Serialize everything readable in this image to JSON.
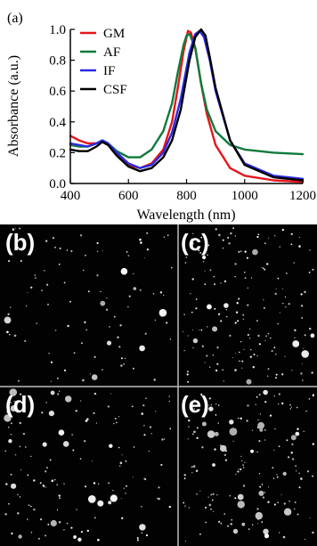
{
  "chart_data": {
    "type": "line",
    "panel_label": "(a)",
    "xlabel": "Wavelength (nm)",
    "ylabel": "Absorbance (a.u.)",
    "xlim": [
      400,
      1200
    ],
    "ylim": [
      0.0,
      1.0
    ],
    "xticks": [
      "400",
      "600",
      "800",
      "1000",
      "1200"
    ],
    "yticks": [
      "0.0",
      "0.2",
      "0.4",
      "0.6",
      "0.8",
      "1.0"
    ],
    "grid": false,
    "legend_position": "top-left",
    "series": [
      {
        "name": "GM",
        "color": "#e8141c",
        "x": [
          400,
          430,
          460,
          490,
          510,
          530,
          560,
          600,
          640,
          680,
          720,
          750,
          770,
          790,
          805,
          815,
          830,
          850,
          870,
          900,
          950,
          1000,
          1100,
          1200
        ],
        "y": [
          0.31,
          0.28,
          0.26,
          0.26,
          0.27,
          0.25,
          0.19,
          0.12,
          0.1,
          0.13,
          0.22,
          0.4,
          0.62,
          0.86,
          0.99,
          0.98,
          0.88,
          0.65,
          0.45,
          0.25,
          0.1,
          0.05,
          0.02,
          0.01
        ]
      },
      {
        "name": "AF",
        "color": "#0f7a3c",
        "x": [
          400,
          430,
          460,
          490,
          510,
          530,
          560,
          600,
          640,
          680,
          720,
          750,
          770,
          790,
          800,
          810,
          830,
          850,
          870,
          900,
          950,
          1000,
          1100,
          1200
        ],
        "y": [
          0.25,
          0.24,
          0.24,
          0.26,
          0.28,
          0.26,
          0.21,
          0.17,
          0.17,
          0.22,
          0.34,
          0.52,
          0.72,
          0.9,
          0.96,
          0.97,
          0.88,
          0.65,
          0.48,
          0.34,
          0.25,
          0.22,
          0.2,
          0.19
        ]
      },
      {
        "name": "IF",
        "color": "#2a2ae6",
        "x": [
          400,
          430,
          460,
          490,
          510,
          530,
          560,
          600,
          640,
          680,
          720,
          750,
          780,
          810,
          830,
          845,
          860,
          880,
          900,
          950,
          1000,
          1100,
          1200
        ],
        "y": [
          0.26,
          0.25,
          0.24,
          0.26,
          0.28,
          0.26,
          0.2,
          0.13,
          0.1,
          0.12,
          0.2,
          0.33,
          0.55,
          0.85,
          0.97,
          0.99,
          0.95,
          0.8,
          0.6,
          0.28,
          0.13,
          0.05,
          0.03
        ]
      },
      {
        "name": "CSF",
        "color": "#000000",
        "x": [
          400,
          430,
          460,
          490,
          510,
          530,
          560,
          600,
          640,
          680,
          720,
          750,
          780,
          810,
          830,
          850,
          865,
          880,
          900,
          950,
          1000,
          1100,
          1200
        ],
        "y": [
          0.22,
          0.21,
          0.21,
          0.24,
          0.27,
          0.25,
          0.18,
          0.11,
          0.08,
          0.1,
          0.17,
          0.28,
          0.48,
          0.8,
          0.95,
          1.0,
          0.96,
          0.82,
          0.62,
          0.28,
          0.12,
          0.04,
          0.02
        ]
      }
    ]
  },
  "micrographs": [
    {
      "label": "(b)"
    },
    {
      "label": "(c)"
    },
    {
      "label": "(d)"
    },
    {
      "label": "(e)"
    }
  ]
}
